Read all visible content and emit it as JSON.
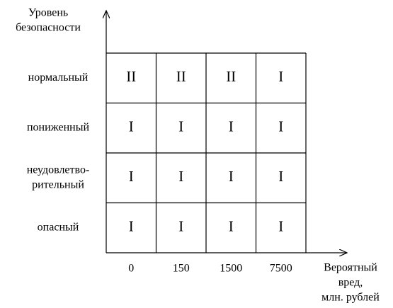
{
  "y_axis_label": [
    "Уровень",
    "безопасности"
  ],
  "rows": [
    {
      "label": [
        "нормальный"
      ],
      "cells": [
        "II",
        "II",
        "II",
        "I"
      ]
    },
    {
      "label": [
        "пониженный"
      ],
      "cells": [
        "I",
        "I",
        "I",
        "I"
      ]
    },
    {
      "label": [
        "неудовлетво-",
        "рительный"
      ],
      "cells": [
        "I",
        "I",
        "I",
        "I"
      ]
    },
    {
      "label": [
        "опасный"
      ],
      "cells": [
        "I",
        "I",
        "I",
        "I"
      ]
    }
  ],
  "x_labels": [
    "0",
    "150",
    "1500",
    "7500"
  ],
  "x_axis_label": [
    "Вероятный",
    "вред,",
    "млн. рублей"
  ]
}
